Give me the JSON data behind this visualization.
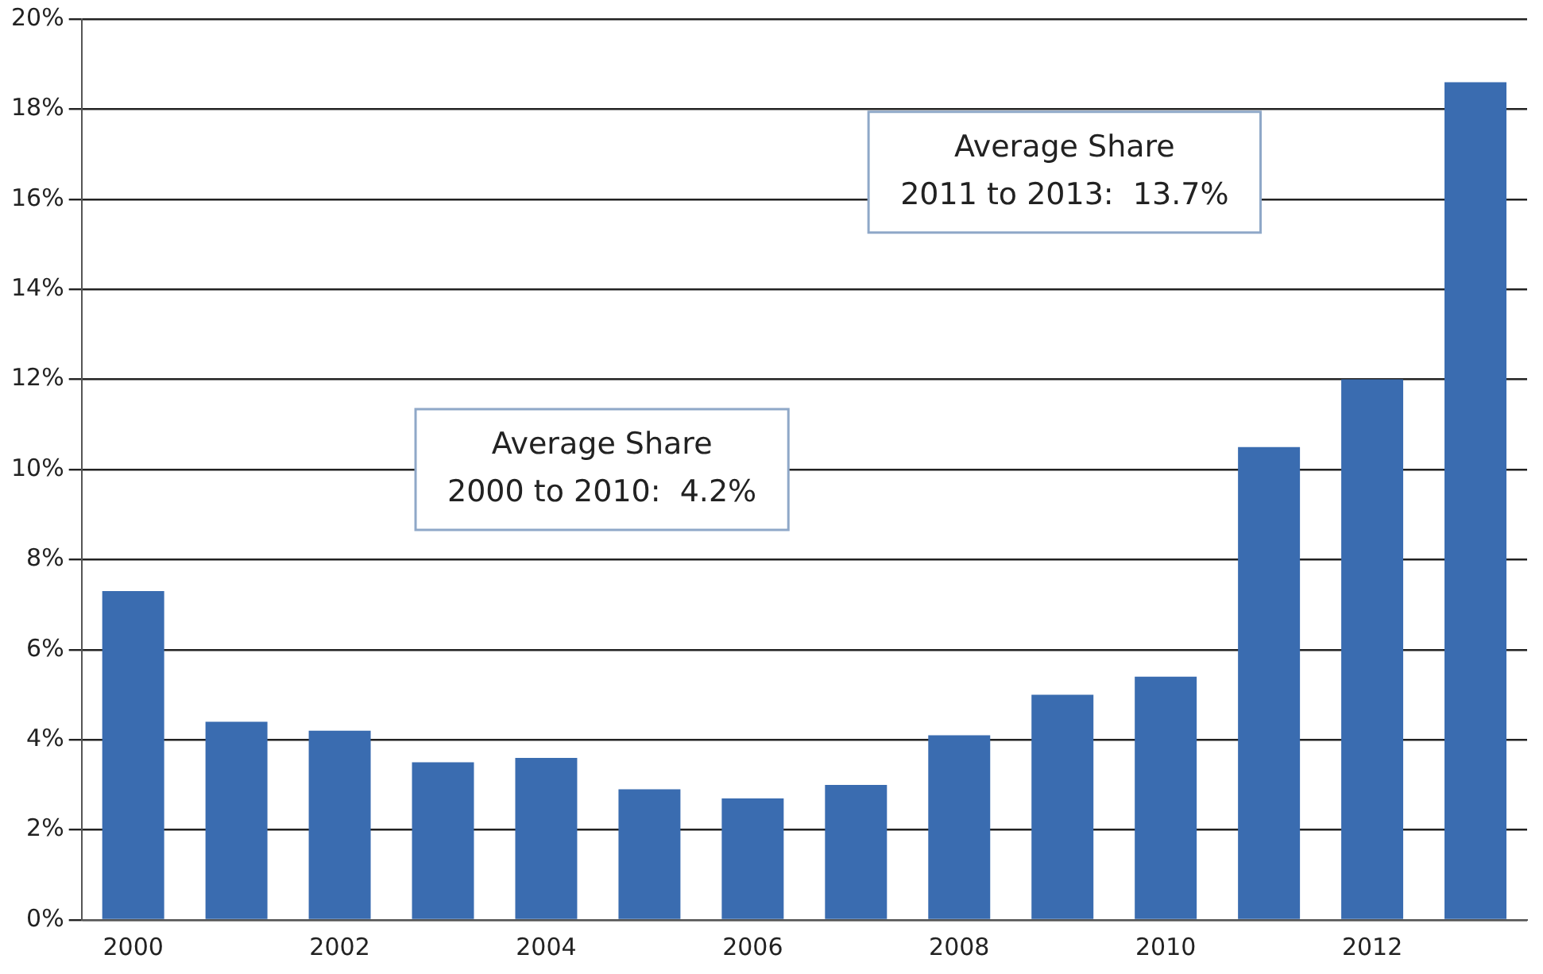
{
  "chart_data": {
    "type": "bar",
    "categories": [
      "2000",
      null,
      "2002",
      null,
      "2004",
      null,
      "2006",
      null,
      "2008",
      null,
      "2010",
      null,
      "2012",
      null
    ],
    "values": [
      7.3,
      4.4,
      4.2,
      3.5,
      3.6,
      2.9,
      2.7,
      3.0,
      4.1,
      5.0,
      5.4,
      10.5,
      12.0,
      18.6
    ],
    "color": "#3a6cb0",
    "ylim": [
      0,
      20
    ],
    "yticks": [
      {
        "value": 0,
        "label": "0%"
      },
      {
        "value": 2,
        "label": "2%"
      },
      {
        "value": 4,
        "label": "4%"
      },
      {
        "value": 6,
        "label": "6%"
      },
      {
        "value": 8,
        "label": "8%"
      },
      {
        "value": 10,
        "label": "10%"
      },
      {
        "value": 12,
        "label": "12%"
      },
      {
        "value": 14,
        "label": "14%"
      },
      {
        "value": 16,
        "label": "16%"
      },
      {
        "value": 18,
        "label": "18%"
      },
      {
        "value": 20,
        "label": "20%"
      }
    ],
    "grid": "y",
    "legend": false,
    "annotations": [
      "Average Share\n2000 to 2010:  4.2%",
      "Average Share\n2011 to 2013:  13.7%"
    ]
  }
}
